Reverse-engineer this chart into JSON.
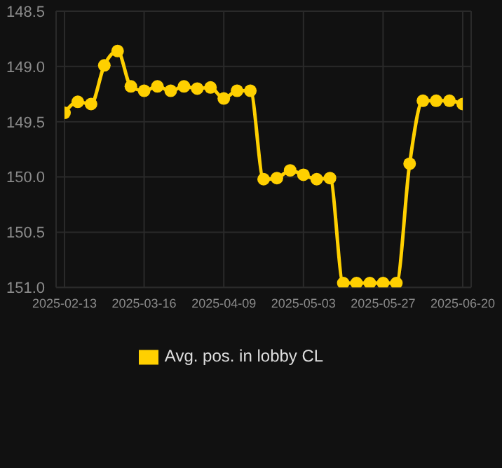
{
  "chart_data": {
    "type": "line",
    "categories": [
      "2025-02-13",
      null,
      null,
      null,
      null,
      null,
      "2025-03-16",
      null,
      null,
      null,
      null,
      null,
      "2025-04-09",
      null,
      null,
      null,
      null,
      null,
      "2025-05-03",
      null,
      null,
      null,
      null,
      null,
      "2025-05-27",
      null,
      null,
      null,
      null,
      null,
      "2025-06-20"
    ],
    "series": [
      {
        "name": "Avg. pos. in lobby CL",
        "color": "#ffd000",
        "values": [
          149.42,
          149.32,
          149.34,
          148.99,
          148.86,
          149.18,
          149.22,
          149.18,
          149.22,
          149.18,
          149.2,
          149.19,
          149.29,
          149.22,
          149.22,
          150.02,
          150.01,
          149.94,
          149.98,
          150.02,
          150.01,
          150.96,
          150.96,
          150.96,
          150.96,
          150.96,
          149.88,
          149.31,
          149.31,
          149.31,
          149.34
        ]
      }
    ],
    "ylim": [
      151.0,
      148.5
    ],
    "yticks": [
      148.5,
      {
        "value": 149,
        "label": "149.0"
      },
      149.5,
      {
        "value": 150,
        "label": "150.0"
      },
      150.5,
      {
        "value": 151,
        "label": "151.0"
      }
    ],
    "grid": true,
    "legend": "bottom",
    "marker": "circle",
    "line_style": "solid"
  }
}
